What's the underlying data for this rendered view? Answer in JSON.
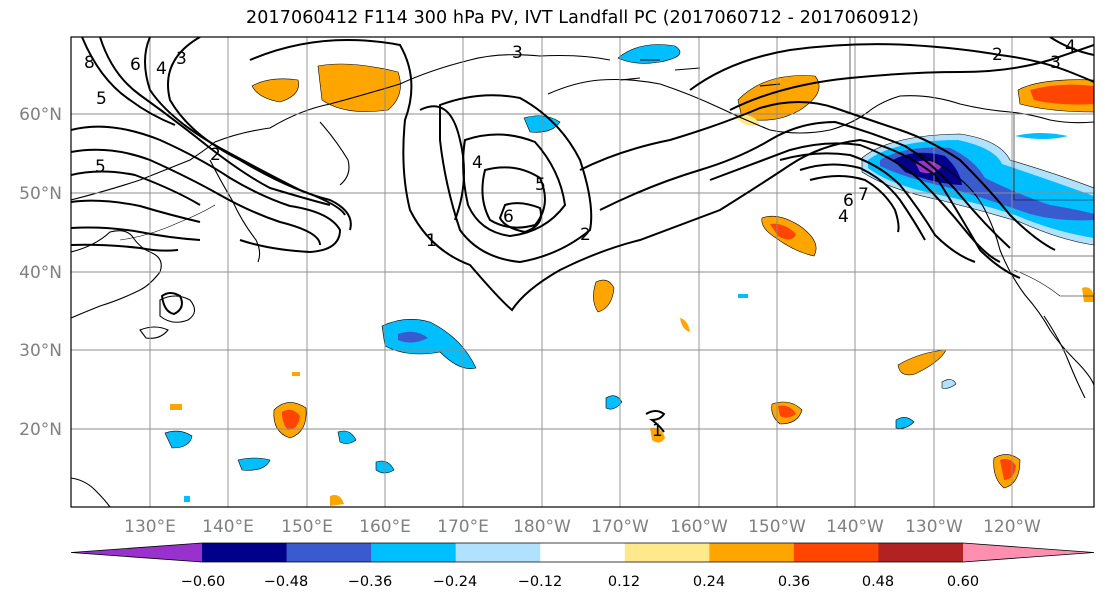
{
  "title": "2017060412 F114 300 hPa PV, IVT Landfall PC (2017060712 - 2017060912)",
  "map": {
    "lon_ticks": [
      "130°E",
      "140°E",
      "150°E",
      "160°E",
      "170°E",
      "180°W",
      "170°W",
      "160°W",
      "150°W",
      "140°W",
      "130°W",
      "120°W"
    ],
    "lat_ticks": [
      "60°N",
      "50°N",
      "40°N",
      "30°N",
      "20°N"
    ],
    "contour_labels": [
      "8",
      "6",
      "4",
      "3",
      "5",
      "5",
      "3",
      "4",
      "5",
      "6",
      "1",
      "2",
      "2",
      "3",
      "4",
      "6",
      "7",
      "4",
      "2",
      "1"
    ]
  },
  "colorbar": {
    "ticks": [
      "−0.60",
      "−0.48",
      "−0.36",
      "−0.24",
      "−0.12",
      "0.12",
      "0.24",
      "0.36",
      "0.48",
      "0.60"
    ],
    "colors": [
      "#9932cc",
      "#00008b",
      "#3a5bcf",
      "#00bfff",
      "#b0e2ff",
      "#ffffff",
      "#ffe98a",
      "#ffa500",
      "#ff4500",
      "#b22222",
      "#ff8fb1"
    ]
  }
}
